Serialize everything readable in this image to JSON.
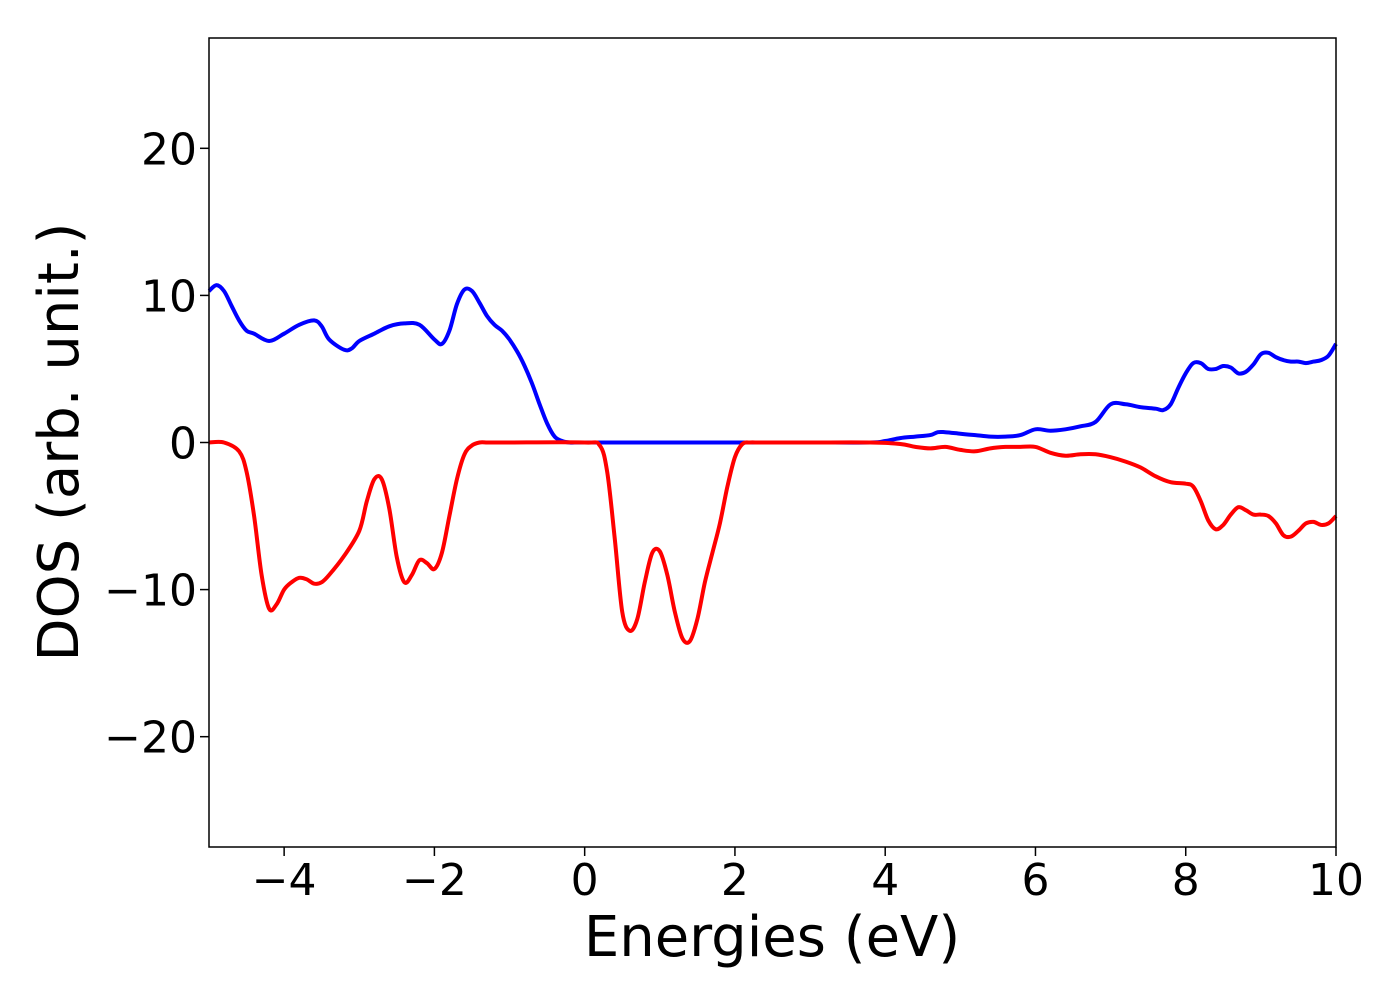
{
  "chart_data": {
    "type": "line",
    "title": "",
    "xlabel": "Energies (eV)",
    "ylabel": "DOS (arb. unit.)",
    "xlim": [
      -5,
      10
    ],
    "ylim": [
      -27.5,
      27.5
    ],
    "xticks": [
      -4,
      -2,
      0,
      2,
      4,
      6,
      8,
      10
    ],
    "xtick_labels": [
      "−4",
      "−2",
      "0",
      "2",
      "4",
      "6",
      "8",
      "10"
    ],
    "yticks": [
      20,
      10,
      0,
      -10,
      -20
    ],
    "ytick_labels": [
      "20",
      "10",
      "0",
      "−10",
      "−20"
    ],
    "grid": false,
    "legend": "none",
    "series": [
      {
        "color": "#0000ff",
        "x": [
          -5.0,
          -4.9,
          -4.8,
          -4.7,
          -4.6,
          -4.5,
          -4.4,
          -4.2,
          -4.0,
          -3.8,
          -3.6,
          -3.5,
          -3.4,
          -3.2,
          -3.1,
          -3.0,
          -2.8,
          -2.6,
          -2.4,
          -2.2,
          -2.0,
          -1.9,
          -1.8,
          -1.7,
          -1.6,
          -1.5,
          -1.4,
          -1.3,
          -1.2,
          -1.1,
          -1.0,
          -0.9,
          -0.8,
          -0.7,
          -0.6,
          -0.5,
          -0.4,
          -0.3,
          -0.2,
          -0.1,
          0.0,
          0.5,
          1.0,
          2.0,
          3.0,
          3.8,
          4.0,
          4.2,
          4.4,
          4.6,
          4.7,
          4.8,
          5.0,
          5.2,
          5.4,
          5.6,
          5.8,
          6.0,
          6.2,
          6.4,
          6.6,
          6.8,
          7.0,
          7.2,
          7.4,
          7.6,
          7.7,
          7.8,
          7.9,
          8.0,
          8.1,
          8.2,
          8.3,
          8.4,
          8.5,
          8.6,
          8.7,
          8.8,
          8.9,
          9.0,
          9.1,
          9.2,
          9.3,
          9.4,
          9.5,
          9.6,
          9.7,
          9.8,
          9.9,
          10.0
        ],
        "y": [
          10.3,
          10.7,
          10.3,
          9.3,
          8.3,
          7.6,
          7.4,
          6.9,
          7.4,
          8.0,
          8.3,
          7.9,
          7.0,
          6.3,
          6.4,
          6.9,
          7.4,
          7.9,
          8.1,
          8.0,
          7.0,
          6.7,
          7.6,
          9.4,
          10.4,
          10.3,
          9.5,
          8.6,
          8.0,
          7.6,
          7.0,
          6.2,
          5.2,
          4.0,
          2.6,
          1.3,
          0.4,
          0.1,
          0.0,
          0.0,
          0.0,
          0.0,
          0.0,
          0.0,
          0.0,
          0.0,
          0.1,
          0.3,
          0.4,
          0.5,
          0.7,
          0.7,
          0.6,
          0.5,
          0.4,
          0.4,
          0.5,
          0.9,
          0.8,
          0.9,
          1.1,
          1.4,
          2.6,
          2.6,
          2.4,
          2.3,
          2.2,
          2.6,
          3.7,
          4.7,
          5.4,
          5.4,
          5.0,
          5.0,
          5.2,
          5.1,
          4.7,
          4.8,
          5.3,
          6.0,
          6.1,
          5.8,
          5.6,
          5.5,
          5.5,
          5.4,
          5.5,
          5.6,
          5.9,
          6.7
        ]
      },
      {
        "color": "#ff0000",
        "x": [
          -5.0,
          -4.8,
          -4.6,
          -4.5,
          -4.4,
          -4.3,
          -4.2,
          -4.1,
          -4.0,
          -3.9,
          -3.8,
          -3.7,
          -3.6,
          -3.5,
          -3.4,
          -3.2,
          -3.0,
          -2.9,
          -2.8,
          -2.7,
          -2.6,
          -2.5,
          -2.4,
          -2.3,
          -2.2,
          -2.1,
          -2.0,
          -1.9,
          -1.8,
          -1.7,
          -1.6,
          -1.5,
          -1.4,
          -1.3,
          -1.2,
          -1.1,
          -1.0,
          0.0,
          0.2,
          0.3,
          0.4,
          0.5,
          0.6,
          0.7,
          0.8,
          0.9,
          1.0,
          1.1,
          1.2,
          1.3,
          1.4,
          1.5,
          1.6,
          1.7,
          1.8,
          1.9,
          2.0,
          2.1,
          2.2,
          2.3,
          2.4,
          3.0,
          3.8,
          4.2,
          4.4,
          4.6,
          4.8,
          5.0,
          5.2,
          5.4,
          5.6,
          5.8,
          6.0,
          6.2,
          6.4,
          6.6,
          6.8,
          7.0,
          7.2,
          7.4,
          7.6,
          7.8,
          8.0,
          8.1,
          8.2,
          8.3,
          8.4,
          8.5,
          8.6,
          8.7,
          8.8,
          8.9,
          9.0,
          9.1,
          9.2,
          9.3,
          9.4,
          9.5,
          9.6,
          9.7,
          9.8,
          9.9,
          10.0
        ],
        "y": [
          0.0,
          0.0,
          -0.6,
          -2.0,
          -5.0,
          -9.0,
          -11.3,
          -11.0,
          -10.0,
          -9.5,
          -9.2,
          -9.3,
          -9.6,
          -9.5,
          -9.0,
          -7.7,
          -6.0,
          -4.0,
          -2.5,
          -2.5,
          -4.5,
          -7.8,
          -9.5,
          -9.0,
          -8.0,
          -8.2,
          -8.6,
          -7.5,
          -5.0,
          -2.5,
          -0.8,
          -0.2,
          0.0,
          0.0,
          0.0,
          0.0,
          0.0,
          0.0,
          -0.2,
          -2.0,
          -6.5,
          -11.5,
          -12.8,
          -12.0,
          -9.5,
          -7.5,
          -7.4,
          -9.0,
          -11.5,
          -13.3,
          -13.5,
          -12.0,
          -9.5,
          -7.5,
          -5.5,
          -3.0,
          -1.0,
          -0.1,
          0.0,
          0.0,
          0.0,
          0.0,
          0.0,
          -0.1,
          -0.3,
          -0.4,
          -0.3,
          -0.5,
          -0.6,
          -0.4,
          -0.3,
          -0.3,
          -0.3,
          -0.7,
          -0.9,
          -0.8,
          -0.8,
          -1.0,
          -1.3,
          -1.7,
          -2.3,
          -2.7,
          -2.8,
          -3.0,
          -4.0,
          -5.3,
          -5.9,
          -5.6,
          -4.9,
          -4.4,
          -4.6,
          -4.9,
          -4.9,
          -5.0,
          -5.5,
          -6.3,
          -6.4,
          -6.0,
          -5.5,
          -5.4,
          -5.6,
          -5.5,
          -5.0
        ]
      }
    ]
  }
}
